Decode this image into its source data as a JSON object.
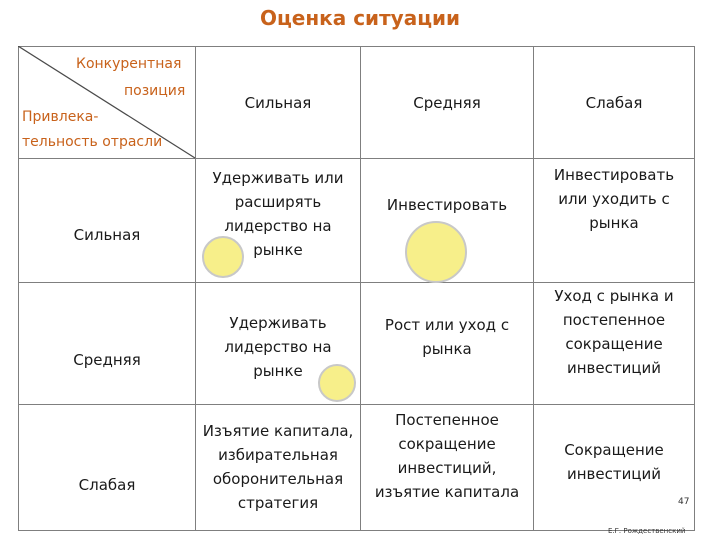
{
  "title": "Оценка ситуации",
  "corner": {
    "top_label_1": "Конкурентная",
    "top_label_2": "позиция",
    "side_label_1": "Привлека-",
    "side_label_2": "тельность отрасли"
  },
  "columns": [
    "Сильная",
    "Средняя",
    "Слабая"
  ],
  "rows": [
    {
      "label": "Сильная",
      "cells": [
        "Удерживать или расширять лидерство на рынке",
        "Инвестировать",
        "Инвестировать или уходить с рынка"
      ]
    },
    {
      "label": "Средняя",
      "cells": [
        "Удерживать лидерство на рынке",
        "Рост или уход с рынка",
        "Уход с рынка и постепенное сокращение инвестиций"
      ]
    },
    {
      "label": "Слабая",
      "cells": [
        "Изъятие капитала, избирательная оборонительная стратегия",
        "Постепенное сокращение инвестиций, изъятие капитала",
        "Сокращение инвестиций"
      ]
    }
  ],
  "page_number": "47",
  "author": "Е.Г. Рождественский",
  "colors": {
    "title": "#c8621b",
    "circle_fill": "#f7ef8a",
    "grid": "#7f7f7f"
  }
}
